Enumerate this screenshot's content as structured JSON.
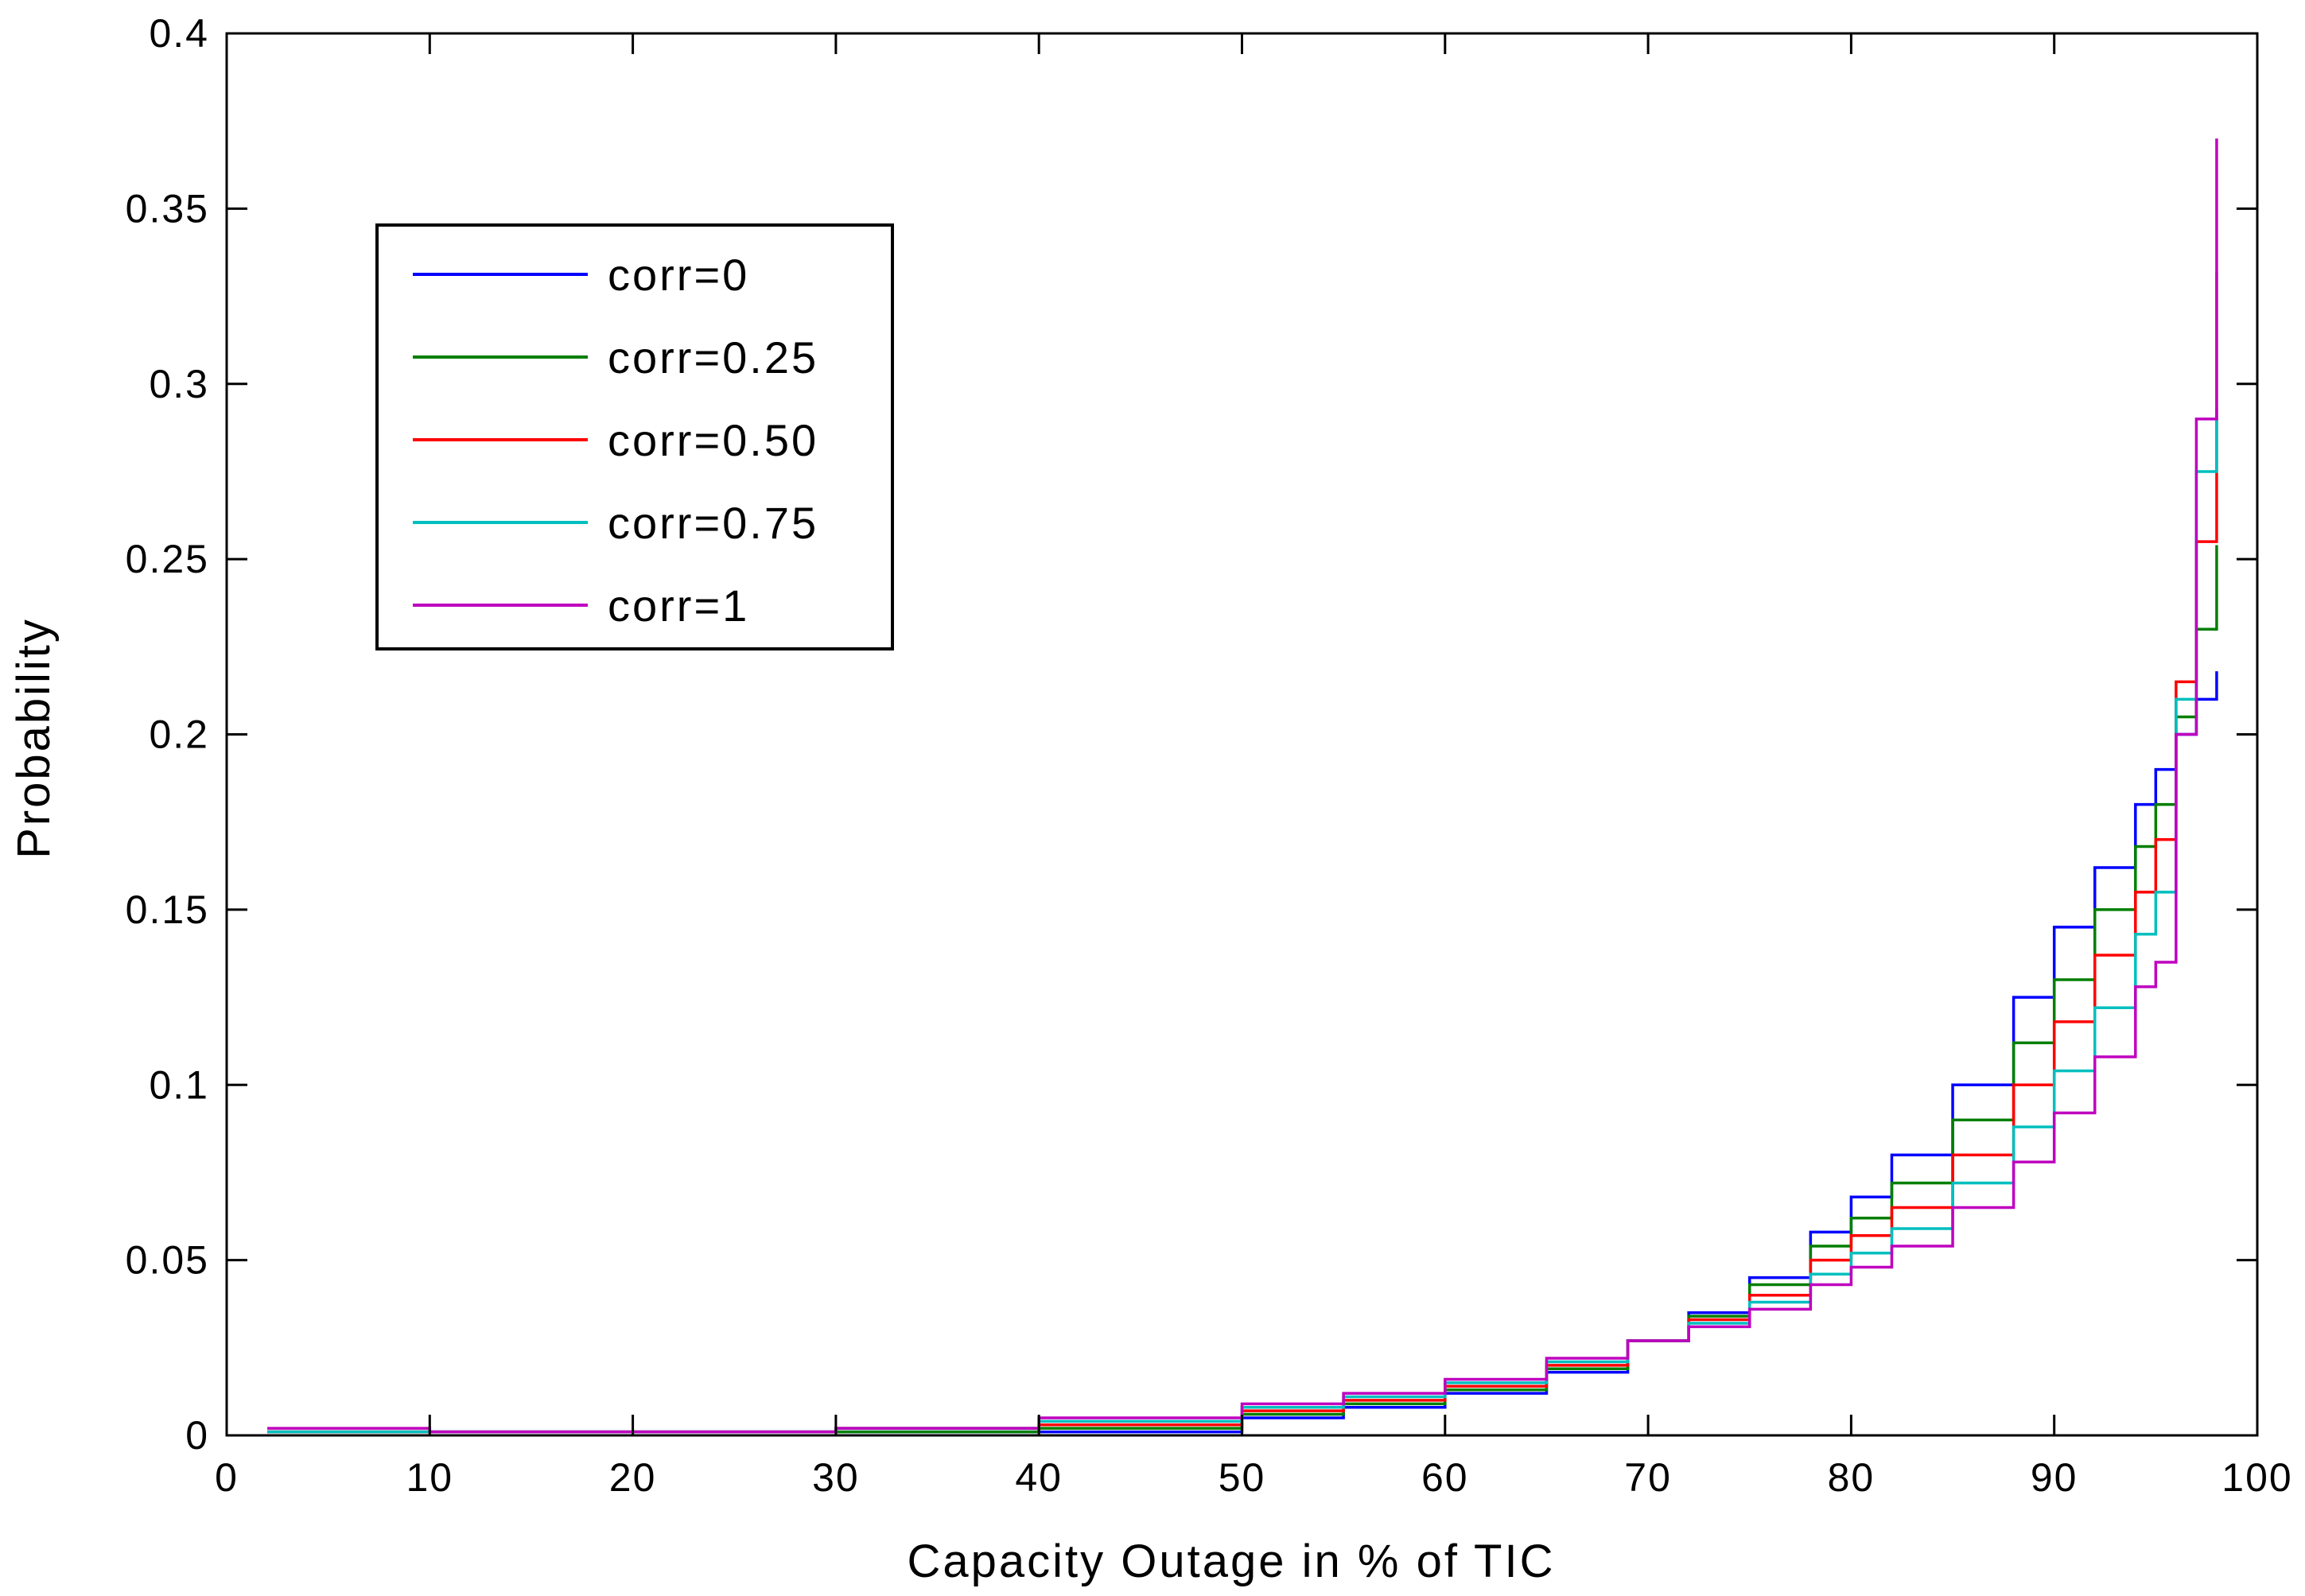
{
  "chart_data": {
    "type": "line",
    "title": "",
    "xlabel": "Capacity Outage in % of TIC",
    "ylabel": "Probability",
    "xlim": [
      0,
      100
    ],
    "ylim": [
      0,
      0.4
    ],
    "xticks": [
      0,
      10,
      20,
      30,
      40,
      50,
      60,
      70,
      80,
      90,
      100
    ],
    "xtick_labels": [
      "0",
      "10",
      "20",
      "30",
      "40",
      "50",
      "60",
      "70",
      "80",
      "90",
      "100"
    ],
    "yticks": [
      0,
      0.05,
      0.1,
      0.15,
      0.2,
      0.25,
      0.3,
      0.35,
      0.4
    ],
    "ytick_labels": [
      "0",
      "0.05",
      "0.1",
      "0.15",
      "0.2",
      "0.25",
      "0.3",
      "0.35",
      "0.4"
    ],
    "grid": false,
    "legend_position": "top-left",
    "x": [
      2,
      10,
      20,
      30,
      40,
      50,
      55,
      60,
      65,
      69,
      72,
      75,
      78,
      80,
      82,
      85,
      88,
      90,
      92,
      94,
      95,
      96,
      97,
      98
    ],
    "series": [
      {
        "name": "corr=0",
        "color": "#0000ff",
        "values": [
          0.001,
          0.001,
          0.001,
          0.001,
          0.001,
          0.005,
          0.008,
          0.012,
          0.018,
          0.027,
          0.035,
          0.045,
          0.058,
          0.068,
          0.08,
          0.1,
          0.125,
          0.145,
          0.162,
          0.18,
          0.19,
          0.2,
          0.21,
          0.218
        ]
      },
      {
        "name": "corr=0.25",
        "color": "#007f00",
        "values": [
          0.001,
          0.001,
          0.001,
          0.001,
          0.002,
          0.006,
          0.009,
          0.013,
          0.019,
          0.027,
          0.034,
          0.043,
          0.054,
          0.062,
          0.072,
          0.09,
          0.112,
          0.13,
          0.15,
          0.168,
          0.18,
          0.205,
          0.23,
          0.254
        ]
      },
      {
        "name": "corr=0.50",
        "color": "#ff0000",
        "values": [
          0.001,
          0.001,
          0.001,
          0.002,
          0.003,
          0.007,
          0.01,
          0.014,
          0.02,
          0.027,
          0.033,
          0.04,
          0.05,
          0.057,
          0.065,
          0.08,
          0.1,
          0.118,
          0.137,
          0.155,
          0.17,
          0.215,
          0.255,
          0.293
        ]
      },
      {
        "name": "corr=0.75",
        "color": "#00bfbf",
        "values": [
          0.001,
          0.001,
          0.001,
          0.002,
          0.004,
          0.008,
          0.011,
          0.015,
          0.021,
          0.027,
          0.032,
          0.038,
          0.046,
          0.052,
          0.059,
          0.072,
          0.088,
          0.104,
          0.122,
          0.143,
          0.155,
          0.21,
          0.275,
          0.332
        ]
      },
      {
        "name": "corr=1",
        "color": "#bf00bf",
        "values": [
          0.002,
          0.001,
          0.001,
          0.002,
          0.005,
          0.009,
          0.012,
          0.016,
          0.022,
          0.027,
          0.031,
          0.036,
          0.043,
          0.048,
          0.054,
          0.065,
          0.078,
          0.092,
          0.108,
          0.128,
          0.135,
          0.2,
          0.29,
          0.37
        ]
      }
    ]
  }
}
